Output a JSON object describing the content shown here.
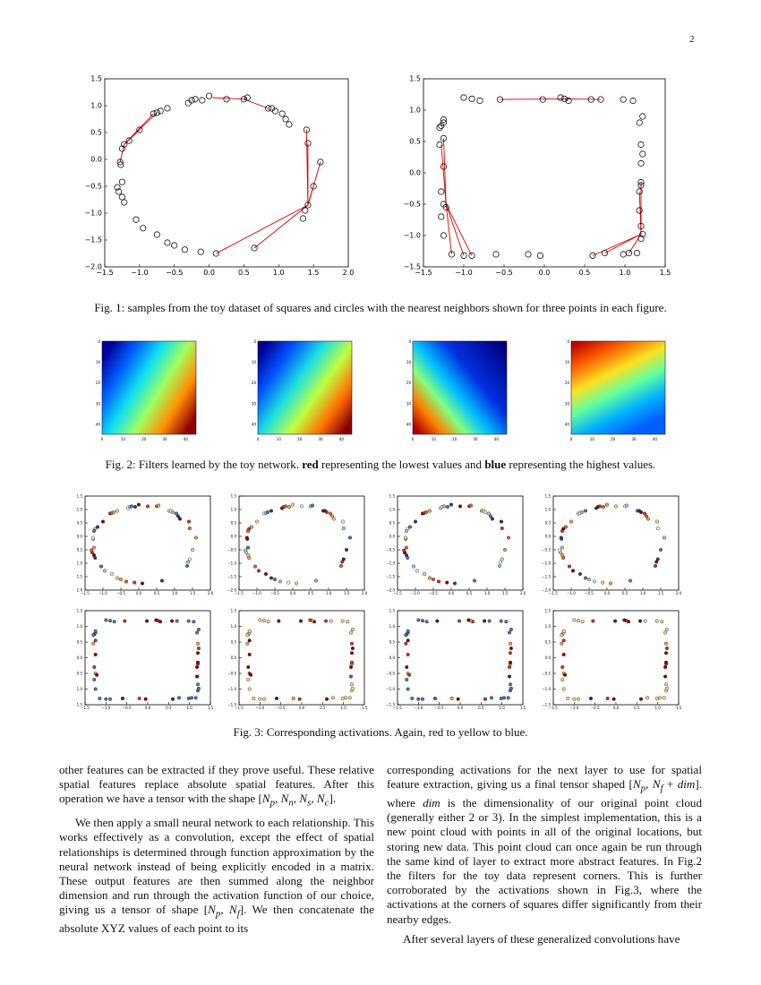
{
  "page_number": "2",
  "fig1": {
    "caption": "Fig. 1: samples from the toy dataset of squares and circles with the nearest neighbors shown for three points in each figure.",
    "left": {
      "xticks": [
        "−1.5",
        "−1.0",
        "−0.5",
        "0.0",
        "0.5",
        "1.0",
        "1.5",
        "2.0"
      ],
      "yticks": [
        "1.5",
        "1.0",
        "0.5",
        "0.0",
        "−0.5",
        "−1.0",
        "−1.5",
        "−2.0"
      ]
    },
    "right": {
      "xticks": [
        "−1.5",
        "−1.0",
        "−0.5",
        "0.0",
        "0.5",
        "1.0",
        "1.5"
      ],
      "yticks": [
        "1.5",
        "1.0",
        "0.5",
        "0.0",
        "−0.5",
        "−1.0",
        "−1.5"
      ]
    }
  },
  "fig2": {
    "caption_prefix": "Fig. 2: Filters learned by the toy network.",
    "caption_red": "red",
    "caption_mid": " representing the lowest values and ",
    "caption_blue": "blue",
    "caption_end": " representing the highest values.",
    "xticks": [
      "0",
      "10",
      "20",
      "30",
      "40"
    ],
    "yticks": [
      "0",
      "10",
      "20",
      "30",
      "40"
    ]
  },
  "fig3": {
    "caption": "Fig. 3: Corresponding activations. Again, red to yellow to blue.",
    "circle_xticks": [
      "−1.5",
      "−1.0",
      "−0.5",
      "0.0",
      "0.5",
      "1.0",
      "1.5",
      "2.0"
    ],
    "circle_yticks": [
      "1.5",
      "1.0",
      "0.5",
      "0.0",
      "−0.5",
      "−1.0",
      "−1.5",
      "−2.0"
    ],
    "square_xticks": [
      "−1.5",
      "−1.0",
      "−0.5",
      "0.0",
      "0.5",
      "1.0",
      "1.5"
    ],
    "square_yticks": [
      "1.5",
      "1.0",
      "0.5",
      "0.0",
      "−0.5",
      "−1.0",
      "−1.5"
    ]
  },
  "text": {
    "left_p1": "other features can be extracted if they prove useful. These relative spatial features replace absolute spatial features. After this operation we have a tensor with the shape [N_p, N_n, N_s, N_c].",
    "left_p1_a": "other features can be extracted if they prove useful. These relative spatial features replace absolute spatial features. After this operation we have a tensor with the shape [",
    "left_p1_m": "N",
    "left_p1_b": "].",
    "left_p2": "We then apply a small neural network to each relationship. This works effectively as a convolution, except the effect of spatial relationships is determined through function approximation by the neural network instead of being explicitly encoded in a matrix. These output features are then summed along the neighbor dimension and run through the activation function of our choice, giving us a tensor of shape [N_p, N_f]. We then concatenate the absolute XYZ values of each point to its",
    "left_p2_a": "We then apply a small neural network to each relationship. This works effectively as a convolution, except the effect of spatial relationships is determined through function approximation by the neural network instead of being explicitly encoded in a matrix. These output features are then summed along the neighbor dimension and run through the activation function of our choice, giving us a tensor of shape [",
    "left_p2_b": "]. We then concatenate the absolute XYZ values of each point to its",
    "right_p1_a": "corresponding activations for the next layer to use for spatial feature extraction, giving us a final tensor shaped [",
    "right_p1_b": "]. where ",
    "right_p1_c": " is the dimensionality of our original point cloud (generally either 2 or 3). In the simplest implementation, this is a new point cloud with points in all of the original locations, but storing new data. This point cloud can once again be run through the same kind of layer to extract more abstract features. In Fig.2 the filters for the toy data represent corners. This is further corroborated by the activations shown in Fig.3, where the activations at the corners of squares differ significantly from their nearby edges.",
    "right_p2": "After several layers of these generalized convolutions have",
    "dim": "dim"
  }
}
